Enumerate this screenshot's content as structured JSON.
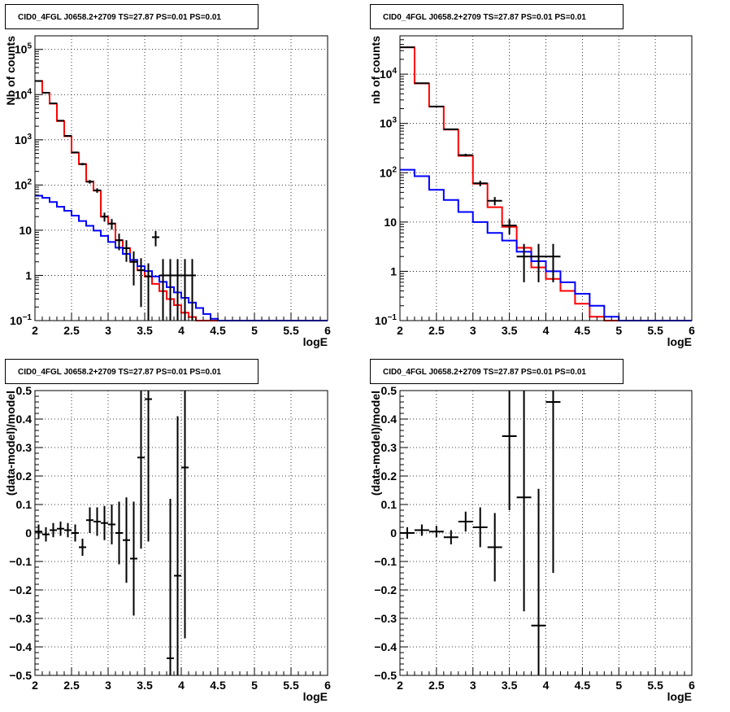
{
  "chart_data": [
    {
      "type": "line",
      "title": "CID0_4FGL J0658.2+2709 TS=27.87 PS=0.01 PS=0.01",
      "xlabel": "logE",
      "ylabel": "Nb of counts",
      "xlim": [
        2,
        6
      ],
      "ylim": [
        0.1,
        200000
      ],
      "log_y": true,
      "grid": true,
      "x_ticks": [
        2,
        2.5,
        3,
        3.5,
        4,
        4.5,
        5,
        5.5,
        6
      ],
      "x_tick_labels": [
        "2",
        "2.5",
        "3",
        "3.5",
        "4",
        "4.5",
        "5",
        "5.5",
        "6"
      ],
      "y_ticks": [
        0.1,
        1,
        10,
        100,
        1000,
        10000,
        100000
      ],
      "y_tick_labels": [
        "10^-1",
        "1",
        "10",
        "10^2",
        "10^3",
        "10^4",
        "10^5"
      ],
      "bin_edges": [
        2.0,
        2.1,
        2.2,
        2.3,
        2.4,
        2.5,
        2.6,
        2.7,
        2.8,
        2.9,
        3.0,
        3.1,
        3.2,
        3.3,
        3.4,
        3.5,
        3.6,
        3.7,
        3.8,
        3.9,
        4.0,
        4.1,
        4.2,
        4.3,
        4.4,
        4.5,
        4.6,
        4.7,
        4.8,
        4.9,
        5.0,
        5.1,
        5.2,
        5.3,
        5.4,
        5.5,
        5.6,
        5.7,
        5.8,
        5.9,
        6.0
      ],
      "series": [
        {
          "style": "step",
          "color": "#ff0000",
          "values": [
            20000,
            11000,
            6300,
            2600,
            1200,
            520,
            290,
            120,
            75,
            20,
            14,
            6,
            4,
            2,
            1.3,
            0.95,
            0.65,
            0.45,
            0.3,
            0.22,
            0.15,
            0.12,
            0.1,
            0.1,
            0.1,
            0.1,
            0.1,
            0.1,
            0.1,
            0.1,
            0.1,
            0.1,
            0.1,
            0.1,
            0.1,
            0.1,
            0.1,
            0.1,
            0.1,
            0.1
          ]
        },
        {
          "style": "step",
          "color": "#0000ff",
          "values": [
            58,
            52,
            42,
            33,
            27,
            21,
            16,
            12.5,
            9.8,
            7.5,
            5.5,
            4.1,
            3.0,
            2.2,
            1.6,
            1.25,
            0.95,
            0.72,
            0.55,
            0.42,
            0.32,
            0.25,
            0.19,
            0.14,
            0.11,
            0.1,
            0.1,
            0.1,
            0.1,
            0.1,
            0.1,
            0.1,
            0.1,
            0.1,
            0.1,
            0.1,
            0.1,
            0.1,
            0.1,
            0.1
          ]
        },
        {
          "style": "errorbar",
          "color": "#000000",
          "x": [
            2.05,
            2.15,
            2.25,
            2.35,
            2.45,
            2.55,
            2.65,
            2.75,
            2.85,
            2.95,
            3.05,
            3.15,
            3.25,
            3.35,
            3.45,
            3.55,
            3.65,
            3.75,
            3.85,
            3.95,
            4.05,
            4.15
          ],
          "y": [
            20000,
            11000,
            6400,
            2650,
            1220,
            525,
            290,
            118,
            76,
            20,
            14,
            6,
            4,
            2,
            1.3,
            0.95,
            7,
            1,
            1,
            1,
            1,
            1
          ],
          "yerr_low": [
            140,
            105,
            80,
            51,
            35,
            23,
            17,
            11,
            8.7,
            4.5,
            3.7,
            2.4,
            2,
            1.4,
            1.1,
            0.9,
            2.6,
            0.9,
            0.9,
            0.9,
            0.9,
            0.9
          ],
          "yerr_high": [
            140,
            105,
            80,
            51,
            35,
            23,
            17,
            11,
            8.7,
            4.5,
            3.7,
            2.4,
            2,
            1.4,
            1.1,
            0.9,
            2.6,
            1.3,
            1.3,
            1.3,
            1.3,
            1.3
          ]
        }
      ]
    },
    {
      "type": "line",
      "title": "CID0_4FGL J0658.2+2709 TS=27.87 PS=0.01 PS=0.01",
      "xlabel": "logE",
      "ylabel": "nb of counts",
      "xlim": [
        2,
        6
      ],
      "ylim": [
        0.1,
        60000
      ],
      "log_y": true,
      "grid": true,
      "x_ticks": [
        2,
        2.5,
        3,
        3.5,
        4,
        4.5,
        5,
        5.5,
        6
      ],
      "x_tick_labels": [
        "2",
        "2.5",
        "3",
        "3.5",
        "4",
        "4.5",
        "5",
        "5.5",
        "6"
      ],
      "y_ticks": [
        0.1,
        1,
        10,
        100,
        1000,
        10000
      ],
      "y_tick_labels": [
        "10^-1",
        "1",
        "10",
        "10^2",
        "10^3",
        "10^4"
      ],
      "bin_edges": [
        2.0,
        2.2,
        2.4,
        2.6,
        2.8,
        3.0,
        3.2,
        3.4,
        3.6,
        3.8,
        4.0,
        4.2,
        4.4,
        4.6,
        4.8,
        5.0,
        5.2,
        5.4,
        5.6,
        5.8,
        6.0
      ],
      "series": [
        {
          "style": "step",
          "color": "#ff0000",
          "values": [
            35000,
            6500,
            2200,
            750,
            220,
            60,
            20,
            8,
            3,
            1.2,
            0.7,
            0.4,
            0.22,
            0.12,
            0.1,
            0.1,
            0.1,
            0.1,
            0.1,
            0.1
          ]
        },
        {
          "style": "step",
          "color": "#0000ff",
          "values": [
            115,
            85,
            45,
            28,
            16,
            10,
            6,
            4.2,
            2.5,
            1.6,
            1.0,
            0.6,
            0.35,
            0.2,
            0.12,
            0.1,
            0.1,
            0.1,
            0.1,
            0.1
          ]
        },
        {
          "style": "errorbar",
          "color": "#000000",
          "x": [
            2.1,
            2.3,
            2.5,
            2.7,
            2.9,
            3.1,
            3.3,
            3.5,
            3.7,
            3.9,
            4.1
          ],
          "y": [
            35000,
            6550,
            2210,
            760,
            228,
            61,
            27,
            8.5,
            2,
            2,
            2
          ],
          "yerr_low": [
            190,
            80,
            47,
            27,
            15,
            7.8,
            5.2,
            2.9,
            1.4,
            1.4,
            1.4
          ],
          "yerr_high": [
            190,
            80,
            47,
            27,
            15,
            7.8,
            5.2,
            2.9,
            1.6,
            1.6,
            1.6
          ]
        }
      ]
    },
    {
      "type": "scatter",
      "title": "CID0_4FGL J0658.2+2709 TS=27.87 PS=0.01 PS=0.01",
      "xlabel": "logE",
      "ylabel": "(data-model)/model",
      "xlim": [
        2,
        6
      ],
      "ylim": [
        -0.5,
        0.5
      ],
      "grid": true,
      "x_ticks": [
        2,
        2.5,
        3,
        3.5,
        4,
        4.5,
        5,
        5.5,
        6
      ],
      "x_tick_labels": [
        "2",
        "2.5",
        "3",
        "3.5",
        "4",
        "4.5",
        "5",
        "5.5",
        "6"
      ],
      "y_ticks": [
        -0.5,
        -0.4,
        -0.3,
        -0.2,
        -0.1,
        0,
        0.1,
        0.2,
        0.3,
        0.4,
        0.5
      ],
      "y_tick_labels": [
        "−0.5",
        "−0.4",
        "−0.3",
        "−0.2",
        "−0.1",
        "0",
        "0.1",
        "0.2",
        "0.3",
        "0.4",
        "0.5"
      ],
      "series": [
        {
          "style": "errorbar",
          "color": "#000000",
          "xerr": 0.05,
          "x": [
            2.05,
            2.15,
            2.25,
            2.35,
            2.45,
            2.55,
            2.65,
            2.75,
            2.85,
            2.95,
            3.05,
            3.15,
            3.25,
            3.35,
            3.45,
            3.55,
            3.85,
            3.95,
            4.05
          ],
          "y": [
            0.005,
            -0.005,
            0.01,
            0.015,
            0.01,
            0.0,
            -0.05,
            0.045,
            0.04,
            0.035,
            0.03,
            0.0,
            -0.025,
            -0.09,
            0.265,
            0.47,
            -0.44,
            -0.15,
            0.23
          ],
          "yerr": [
            0.025,
            0.025,
            0.025,
            0.025,
            0.025,
            0.03,
            0.03,
            0.045,
            0.05,
            0.06,
            0.07,
            0.11,
            0.15,
            0.2,
            0.32,
            0.5,
            0.56,
            0.56,
            0.6
          ]
        }
      ]
    },
    {
      "type": "scatter",
      "title": "CID0_4FGL J0658.2+2709 TS=27.87 PS=0.01 PS=0.01",
      "xlabel": "logE",
      "ylabel": "(data-model)/model",
      "xlim": [
        2,
        6
      ],
      "ylim": [
        -0.5,
        0.5
      ],
      "grid": true,
      "x_ticks": [
        2,
        2.5,
        3,
        3.5,
        4,
        4.5,
        5,
        5.5,
        6
      ],
      "x_tick_labels": [
        "2",
        "2.5",
        "3",
        "3.5",
        "4",
        "4.5",
        "5",
        "5.5",
        "6"
      ],
      "y_ticks": [
        -0.5,
        -0.4,
        -0.3,
        -0.2,
        -0.1,
        0,
        0.1,
        0.2,
        0.3,
        0.4,
        0.5
      ],
      "y_tick_labels": [
        "−0.5",
        "−0.4",
        "−0.3",
        "−0.2",
        "−0.1",
        "0",
        "0.1",
        "0.2",
        "0.3",
        "0.4",
        "0.5"
      ],
      "series": [
        {
          "style": "errorbar",
          "color": "#000000",
          "xerr": 0.1,
          "x": [
            2.1,
            2.3,
            2.5,
            2.7,
            2.9,
            3.1,
            3.3,
            3.5,
            3.7,
            3.9,
            4.1
          ],
          "y": [
            0.0,
            0.01,
            0.005,
            -0.015,
            0.04,
            0.02,
            -0.05,
            0.34,
            0.125,
            -0.325,
            0.46
          ],
          "yerr": [
            0.02,
            0.02,
            0.02,
            0.025,
            0.035,
            0.07,
            0.12,
            0.26,
            0.4,
            0.48,
            0.6
          ]
        }
      ]
    }
  ]
}
